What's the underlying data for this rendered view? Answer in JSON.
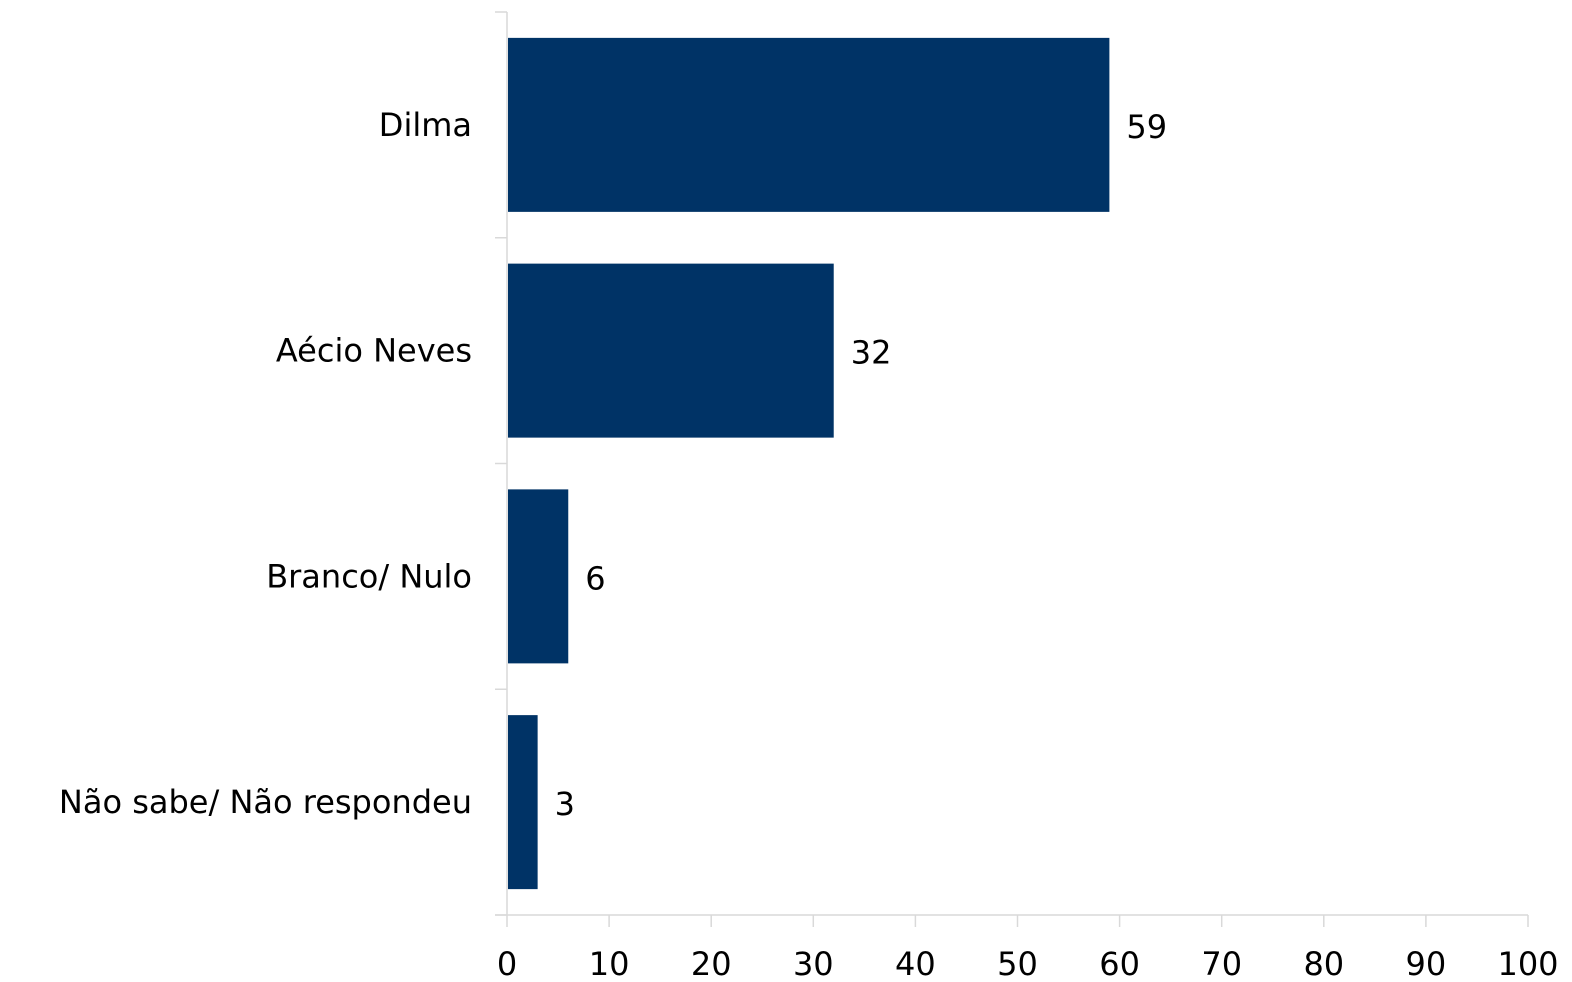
{
  "chart_data": {
    "type": "bar",
    "orientation": "horizontal",
    "categories": [
      "Dilma",
      "Aécio Neves",
      "Branco/ Nulo",
      "Não sabe/ Não respondeu"
    ],
    "values": [
      59,
      32,
      6,
      3
    ],
    "data_labels": [
      "59",
      "32",
      "6",
      "3"
    ],
    "title": "",
    "xlabel": "",
    "ylabel": "",
    "xlim": [
      0,
      100
    ],
    "x_ticks": [
      0,
      10,
      20,
      30,
      40,
      50,
      60,
      70,
      80,
      90,
      100
    ],
    "x_tick_labels": [
      "0",
      "10",
      "20",
      "30",
      "40",
      "50",
      "60",
      "70",
      "80",
      "90",
      "100"
    ],
    "grid": false,
    "legend": "none",
    "bar_color": "#003366"
  }
}
